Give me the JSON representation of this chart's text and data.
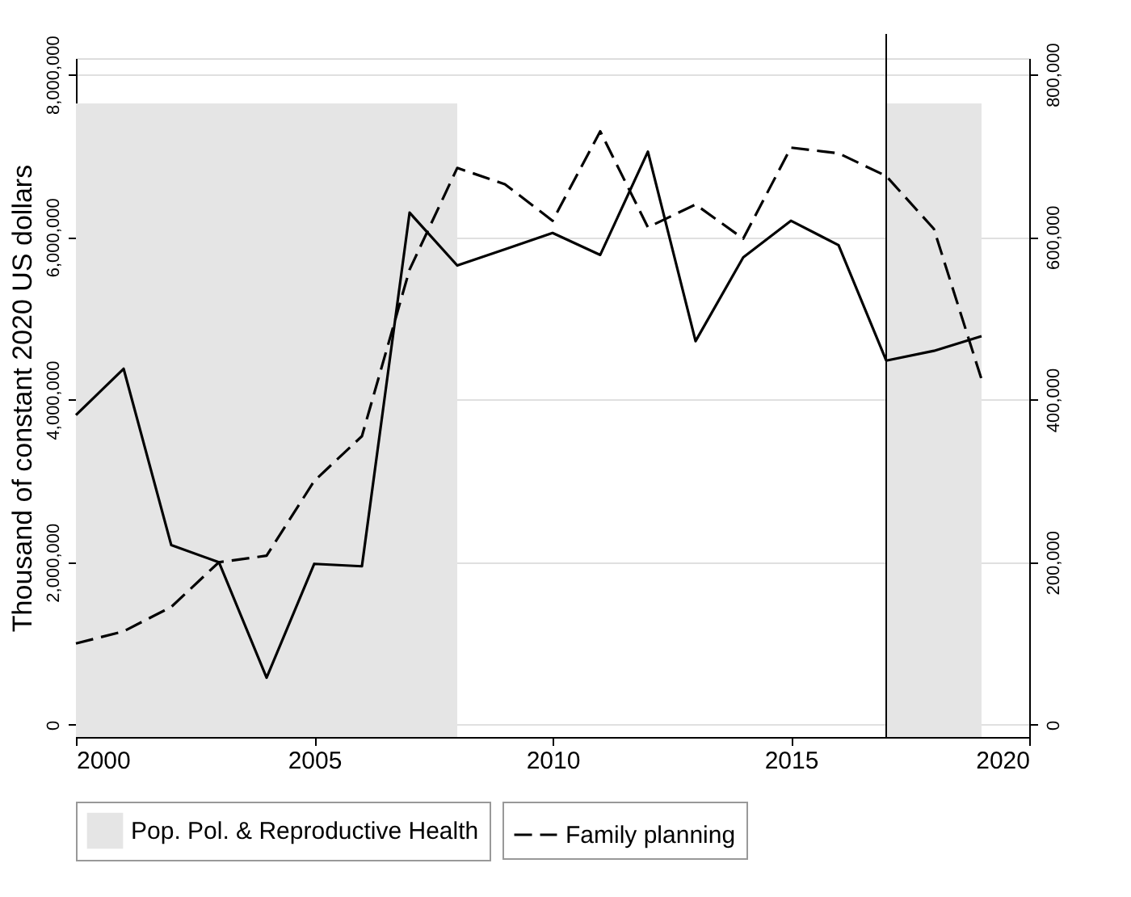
{
  "chart_data": {
    "type": "line",
    "x": [
      2000,
      2001,
      2002,
      2003,
      2004,
      2005,
      2006,
      2007,
      2008,
      2009,
      2010,
      2011,
      2012,
      2013,
      2014,
      2015,
      2016,
      2017,
      2018,
      2019
    ],
    "ylabel": "Thousand of constant 2020 US dollars",
    "series": [
      {
        "color": "#000000",
        "line_style": "solid",
        "values": [
          3810000,
          4380000,
          2210000,
          2000000,
          580000,
          1980000,
          1950000,
          6300000,
          5650000,
          5850000,
          6050000,
          5780000,
          7050000,
          4720000,
          5750000,
          6200000,
          5900000,
          4480000,
          4600000,
          4780000
        ]
      },
      {
        "name": "Family planning",
        "color": "#000000",
        "line_style": "dashed",
        "axis": "y2",
        "values": [
          100000,
          115000,
          145000,
          200000,
          208000,
          300000,
          355000,
          560000,
          685000,
          665000,
          620000,
          730000,
          612000,
          640000,
          598000,
          710000,
          703000,
          675000,
          610000,
          425000
        ]
      }
    ],
    "xlim": [
      2000,
      2020
    ],
    "xticks": [
      2000,
      2005,
      2010,
      2015,
      2020
    ],
    "ylim": [
      -150000,
      8200000
    ],
    "yticks": [
      {
        "value": 0,
        "label": "0"
      },
      {
        "value": 2000000,
        "label": "2,000,000"
      },
      {
        "value": 4000000,
        "label": "4,000,000"
      },
      {
        "value": 6000000,
        "label": "6,000,000"
      },
      {
        "value": 8000000,
        "label": "8,000,000"
      }
    ],
    "y2lim": [
      -15000,
      820000
    ],
    "y2ticks": [
      {
        "value": 0,
        "label": "0"
      },
      {
        "value": 200000,
        "label": "200,000"
      },
      {
        "value": 400000,
        "label": "400,000"
      },
      {
        "value": 600000,
        "label": "600,000"
      },
      {
        "value": 800000,
        "label": "800,000"
      }
    ],
    "bands": [
      {
        "axis": "x",
        "from": 2000,
        "to": 2008,
        "label": "Pop. Pol. & Reproductive Health",
        "color": "#e5e5e5"
      },
      {
        "axis": "x",
        "from": 2017,
        "to": 2019,
        "color": "#e5e5e5"
      }
    ],
    "ref_lines": [
      {
        "axis": "x",
        "value": 2017,
        "color": "#000000"
      }
    ],
    "grid": "y",
    "legend": "bottom"
  }
}
